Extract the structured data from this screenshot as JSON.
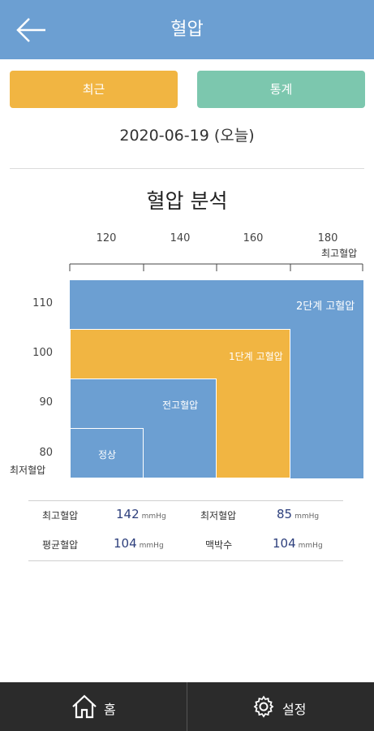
{
  "header": {
    "title": "혈압",
    "back_icon": "arrow-left-icon"
  },
  "tabs": {
    "recent": "최근",
    "stats": "통계"
  },
  "date": "2020-06-19 (오늘)",
  "analysis": {
    "title": "혈압 분석",
    "x_axis_label": "최고혈압",
    "y_axis_label": "최저혈압",
    "x_ticks": [
      "120",
      "140",
      "160",
      "180"
    ],
    "y_ticks": [
      "110",
      "100",
      "90",
      "80"
    ],
    "zones": [
      {
        "label": "2단계 고혈압",
        "color": "#6c9fd2"
      },
      {
        "label": "1단계 고혈압",
        "color": "#f1b542"
      },
      {
        "label": "전고혈압",
        "color": "#6c9fd2"
      },
      {
        "label": "정상",
        "color": "#6c9fd2"
      }
    ]
  },
  "stats": {
    "systolic": {
      "label": "최고혈압",
      "value": "142",
      "unit": "mmHg"
    },
    "diastolic": {
      "label": "최저혈압",
      "value": "85",
      "unit": "mmHg"
    },
    "average": {
      "label": "평균혈압",
      "value": "104",
      "unit": "mmHg"
    },
    "pulse": {
      "label": "맥박수",
      "value": "104",
      "unit": "mmHg"
    }
  },
  "footer": {
    "home": {
      "label": "홈",
      "icon": "home-icon"
    },
    "settings": {
      "label": "설정",
      "icon": "gear-icon"
    }
  }
}
